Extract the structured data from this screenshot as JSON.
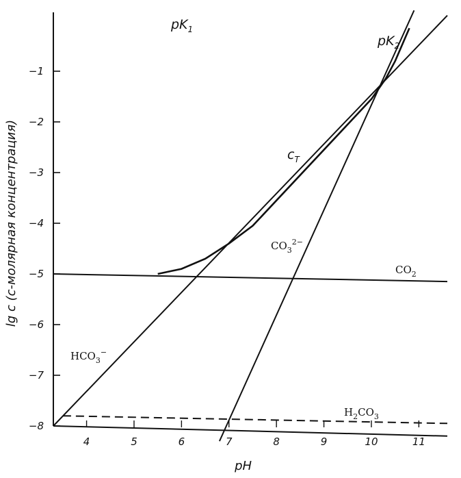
{
  "chart_data": {
    "type": "line",
    "xlabel": "pH",
    "ylabel": "lg c (c-молярная концентрация)",
    "xlim": [
      3.3,
      11.6
    ],
    "ylim": [
      -8.0,
      0.0
    ],
    "x_ticks": [
      4,
      5,
      6,
      7,
      8,
      9,
      10,
      11
    ],
    "y_ticks": [
      -1,
      -2,
      -3,
      -4,
      -5,
      -6,
      -7,
      -8
    ],
    "grid": false,
    "legend": "none",
    "series": [
      {
        "name": "c_T",
        "style": "solid",
        "points": [
          [
            5.5,
            -5.0
          ],
          [
            6.0,
            -4.9
          ],
          [
            6.5,
            -4.7
          ],
          [
            7.0,
            -4.4
          ],
          [
            7.5,
            -4.05
          ],
          [
            8.0,
            -3.55
          ],
          [
            8.5,
            -3.05
          ],
          [
            9.0,
            -2.55
          ],
          [
            9.5,
            -2.05
          ],
          [
            10.0,
            -1.55
          ],
          [
            10.3,
            -1.15
          ],
          [
            10.5,
            -0.8
          ],
          [
            10.8,
            -0.15
          ]
        ]
      },
      {
        "name": "HCO3-",
        "style": "solid",
        "points": [
          [
            3.3,
            -8.0
          ],
          [
            11.6,
            0.1
          ]
        ]
      },
      {
        "name": "CO3 2-",
        "style": "solid",
        "points": [
          [
            6.8,
            -8.3
          ],
          [
            10.9,
            0.2
          ]
        ]
      },
      {
        "name": "CO2",
        "style": "solid",
        "points": [
          [
            3.3,
            -5.0
          ],
          [
            11.6,
            -5.15
          ]
        ]
      },
      {
        "name": "H2CO3",
        "style": "dashed",
        "points": [
          [
            3.5,
            -7.8
          ],
          [
            11.6,
            -7.95
          ]
        ]
      }
    ],
    "baseline": {
      "points": [
        [
          3.3,
          -8.0
        ],
        [
          11.6,
          -8.2
        ]
      ]
    },
    "annotations": {
      "pK1": "pK1",
      "pK2": "pK2",
      "cT": "cT",
      "HCO3": "HCO3−",
      "CO3": "CO3 2−",
      "CO2": "CO2",
      "H2CO3": "H2CO3"
    }
  },
  "colors": {
    "ink": "#111111",
    "background": "#ffffff"
  }
}
